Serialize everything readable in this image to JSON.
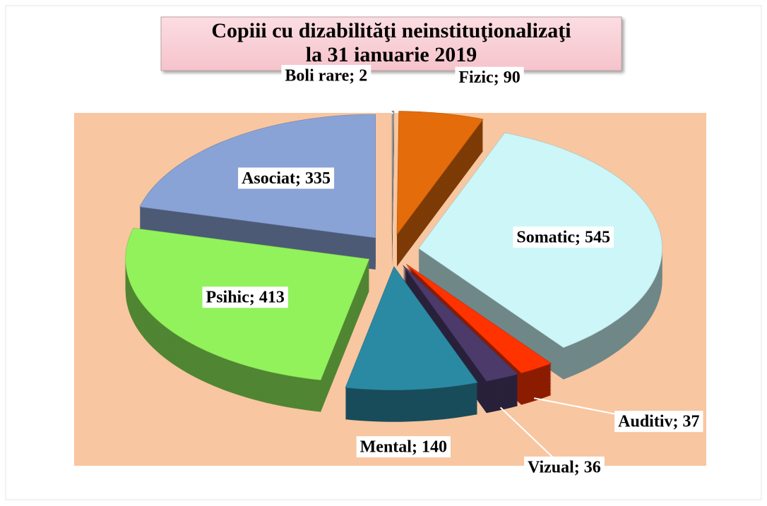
{
  "chart_data": {
    "type": "pie",
    "title": "Copiii cu dizabilităţi neinstituţionalizaţi",
    "subtitle": "la  31 ianuarie 2019",
    "label_separator": "; ",
    "categories": [
      "Boli rare",
      "Fizic",
      "Somatic",
      "Auditiv",
      "Vizual",
      "Mental",
      "Psihic",
      "Asociat"
    ],
    "values": [
      2,
      90,
      545,
      37,
      36,
      140,
      413,
      335
    ],
    "colors": [
      "#9a9a9a",
      "#e46c0a",
      "#ccf6f8",
      "#ff3300",
      "#4b3a6a",
      "#2b8aa3",
      "#92f25c",
      "#8aa3d6"
    ]
  }
}
